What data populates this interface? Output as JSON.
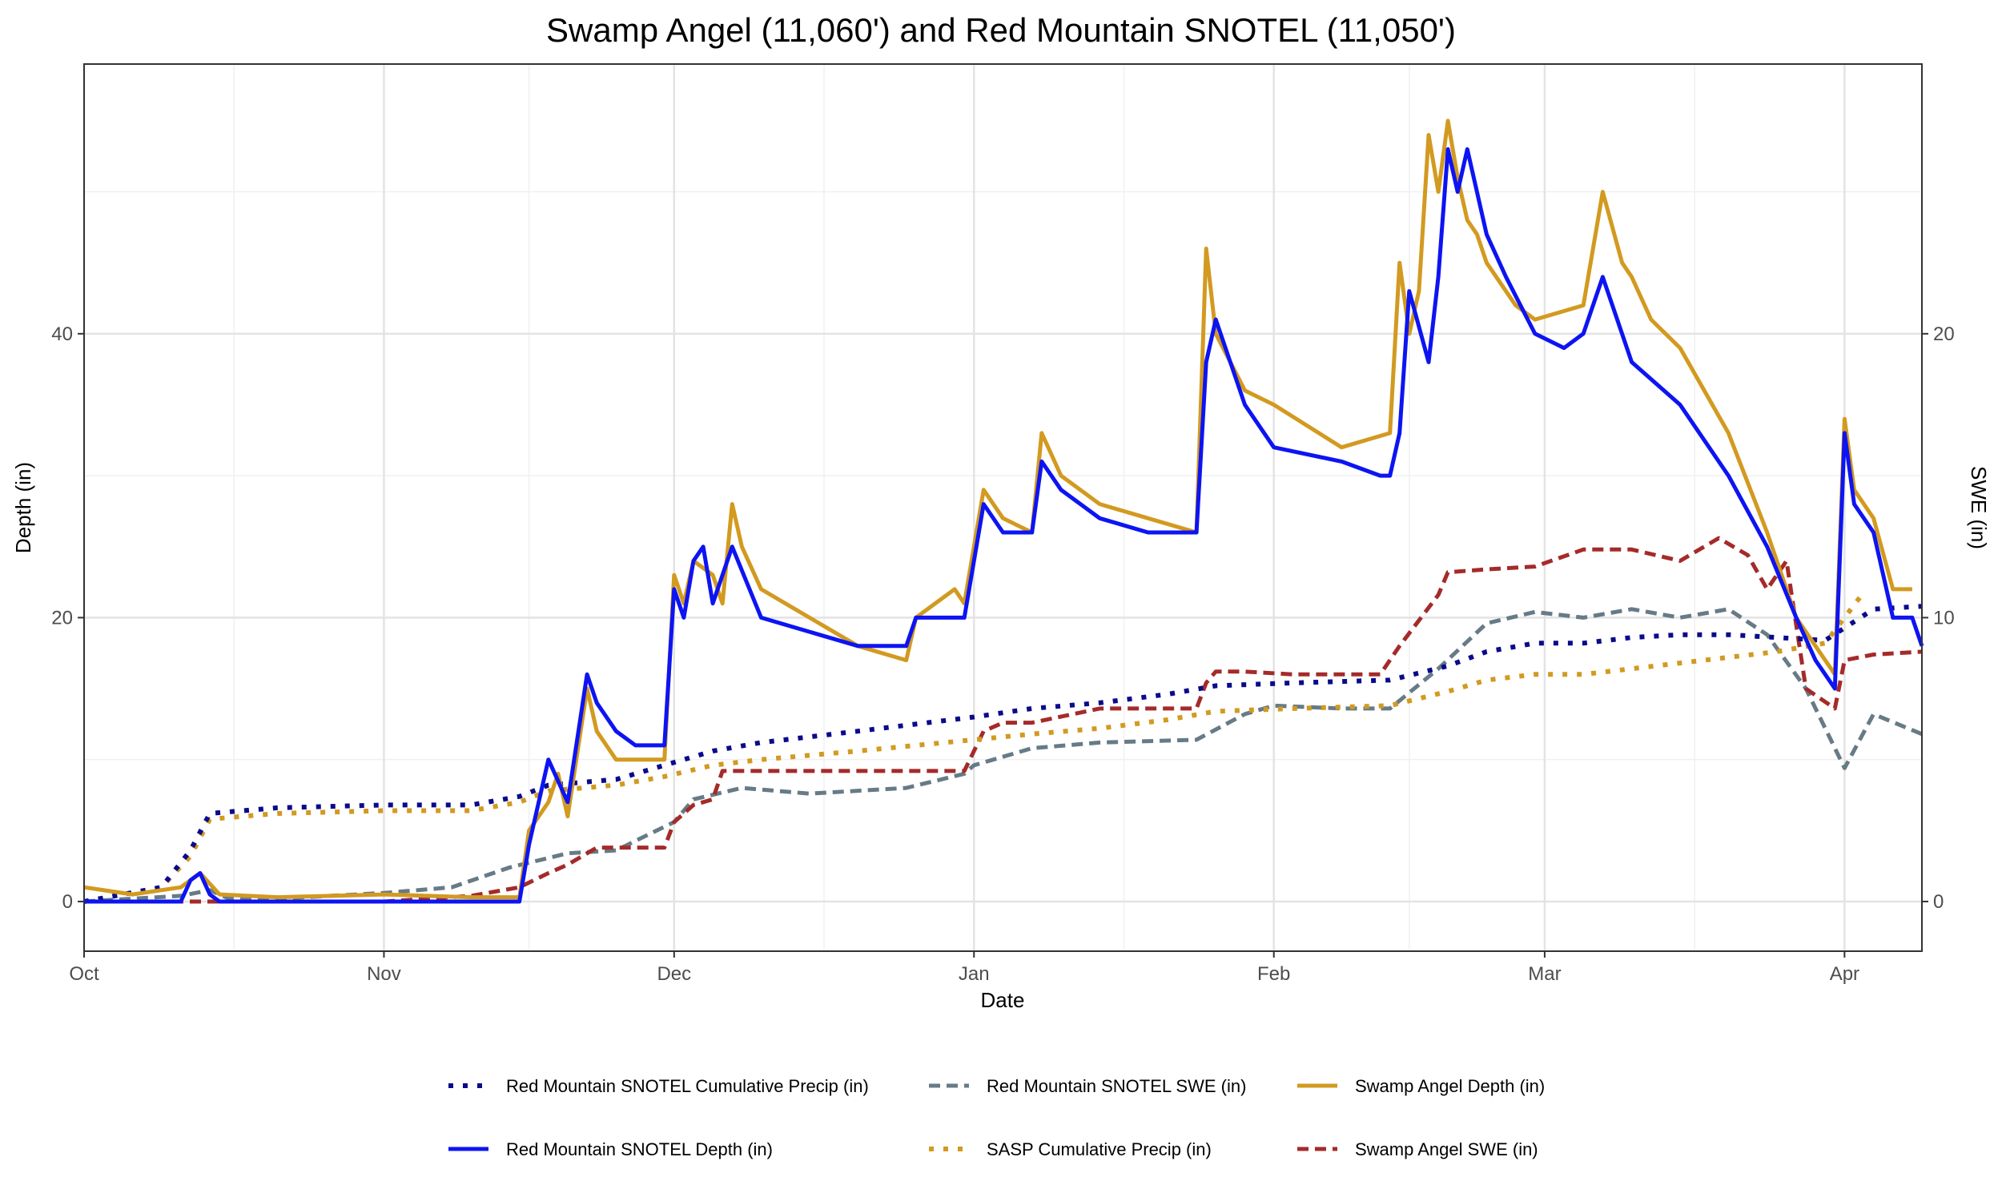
{
  "chart_data": {
    "type": "line",
    "title": "Swamp Angel (11,060') and Red Mountain SNOTEL (11,050')",
    "xlabel": "Date",
    "ylabel": "Depth (in)",
    "y2label": "SWE (in)",
    "x_range_days": [
      0,
      190
    ],
    "x_ticks": [
      {
        "label": "Oct",
        "day": 0
      },
      {
        "label": "Nov",
        "day": 31
      },
      {
        "label": "Dec",
        "day": 61
      },
      {
        "label": "Jan",
        "day": 92
      },
      {
        "label": "Feb",
        "day": 123
      },
      {
        "label": "Mar",
        "day": 151
      },
      {
        "label": "Apr",
        "day": 182
      }
    ],
    "ylim": [
      -3.5,
      59
    ],
    "y_ticks": [
      0,
      20,
      40
    ],
    "y2lim": [
      -1.75,
      29.5
    ],
    "y2_ticks": [
      0,
      10,
      20
    ],
    "grid": true,
    "legend_position": "bottom",
    "series": [
      {
        "name": "Red Mountain SNOTEL Cumulative Precip (in)",
        "color": "#0a0a8c",
        "dash": "dot",
        "axis": "y2",
        "x": [
          0,
          8,
          11,
          13,
          20,
          31,
          40,
          45,
          48,
          55,
          60,
          65,
          70,
          80,
          92,
          98,
          105,
          112,
          117,
          125,
          135,
          141,
          145,
          150,
          155,
          160,
          165,
          170,
          175,
          180,
          185,
          190
        ],
        "y": [
          0,
          0.5,
          1.8,
          3.1,
          3.3,
          3.4,
          3.4,
          3.7,
          4.1,
          4.3,
          4.8,
          5.3,
          5.6,
          6.0,
          6.5,
          6.8,
          7.0,
          7.3,
          7.6,
          7.7,
          7.8,
          8.3,
          8.8,
          9.1,
          9.1,
          9.3,
          9.4,
          9.4,
          9.3,
          9.2,
          10.3,
          10.4
        ]
      },
      {
        "name": "Red Mountain SNOTEL SWE (in)",
        "color": "#667b86",
        "dash": "dash",
        "axis": "y2",
        "x": [
          0,
          5,
          10,
          13,
          15,
          20,
          31,
          38,
          44,
          50,
          55,
          61,
          63,
          68,
          75,
          85,
          91,
          92,
          98,
          105,
          115,
          120,
          123,
          130,
          135,
          140,
          145,
          150,
          155,
          160,
          165,
          170,
          174,
          178,
          182,
          185,
          190
        ],
        "y": [
          0,
          0.1,
          0.2,
          0.4,
          0.1,
          0.1,
          0.3,
          0.5,
          1.2,
          1.7,
          1.8,
          2.8,
          3.6,
          4.0,
          3.8,
          4.0,
          4.5,
          4.8,
          5.4,
          5.6,
          5.7,
          6.6,
          6.9,
          6.8,
          6.8,
          8.2,
          9.8,
          10.2,
          10.0,
          10.3,
          10.0,
          10.3,
          9.4,
          7.5,
          4.7,
          6.6,
          5.9
        ]
      },
      {
        "name": "Swamp Angel Depth (in)",
        "color": "#d29a20",
        "dash": "solid",
        "axis": "y1",
        "x": [
          0,
          5,
          10,
          12,
          14,
          20,
          31,
          40,
          45,
          46,
          48,
          49,
          50,
          52,
          53,
          55,
          57,
          60,
          61,
          62,
          63,
          65,
          66,
          67,
          68,
          70,
          75,
          80,
          85,
          86,
          90,
          91,
          93,
          95,
          98,
          99,
          101,
          105,
          110,
          115,
          116,
          117,
          120,
          123,
          130,
          135,
          136,
          137,
          138,
          139,
          140,
          141,
          142,
          143,
          144,
          145,
          148,
          150,
          155,
          157,
          159,
          160,
          162,
          165,
          170,
          174,
          177,
          179,
          181,
          182,
          183,
          185,
          187,
          189
        ],
        "y": [
          1,
          0.5,
          1,
          2,
          0.5,
          0.3,
          0.5,
          0.3,
          0.3,
          5,
          7,
          9,
          6,
          15,
          12,
          10,
          10,
          10,
          23,
          21,
          24,
          23,
          21,
          28,
          25,
          22,
          20,
          18,
          17,
          20,
          22,
          21,
          29,
          27,
          26,
          33,
          30,
          28,
          27,
          26,
          46,
          40,
          36,
          35,
          32,
          33,
          45,
          40,
          43,
          54,
          50,
          55,
          51,
          48,
          47,
          45,
          42,
          41,
          42,
          50,
          45,
          44,
          41,
          39,
          33,
          26,
          20,
          18,
          16,
          34,
          29,
          27,
          22,
          22
        ]
      },
      {
        "name": "Red Mountain SNOTEL Depth (in)",
        "color": "#0d14f2",
        "dash": "solid",
        "axis": "y1",
        "x": [
          0,
          10,
          11,
          12,
          13,
          14,
          20,
          31,
          40,
          45,
          46,
          48,
          50,
          52,
          53,
          55,
          57,
          59,
          60,
          61,
          62,
          63,
          64,
          65,
          66,
          67,
          70,
          75,
          80,
          85,
          86,
          90,
          91,
          93,
          95,
          98,
          99,
          101,
          105,
          110,
          115,
          116,
          117,
          120,
          123,
          130,
          134,
          135,
          136,
          137,
          139,
          140,
          141,
          142,
          143,
          145,
          147,
          150,
          153,
          155,
          157,
          160,
          165,
          170,
          174,
          177,
          179,
          181,
          182,
          183,
          185,
          187,
          189,
          190
        ],
        "y": [
          0,
          0,
          1.5,
          2,
          0.5,
          0,
          0,
          0,
          0,
          0,
          4,
          10,
          7,
          16,
          14,
          12,
          11,
          11,
          11,
          22,
          20,
          24,
          25,
          21,
          23,
          25,
          20,
          19,
          18,
          18,
          20,
          20,
          20,
          28,
          26,
          26,
          31,
          29,
          27,
          26,
          26,
          38,
          41,
          35,
          32,
          31,
          30,
          30,
          33,
          43,
          38,
          44,
          53,
          50,
          53,
          47,
          44,
          40,
          39,
          40,
          44,
          38,
          35,
          30,
          25,
          20,
          17,
          15,
          33,
          28,
          26,
          20,
          20,
          18
        ]
      },
      {
        "name": "SASP Cumulative Precip (in)",
        "color": "#d29a20",
        "dash": "dot",
        "axis": "y2",
        "x": [
          0,
          8,
          11,
          13,
          20,
          31,
          40,
          45,
          48,
          55,
          60,
          65,
          70,
          80,
          92,
          98,
          105,
          112,
          117,
          125,
          135,
          141,
          145,
          150,
          155,
          160,
          165,
          170,
          175,
          180,
          184
        ],
        "y": [
          0,
          0.5,
          1.6,
          2.9,
          3.1,
          3.2,
          3.2,
          3.5,
          3.9,
          4.1,
          4.4,
          4.8,
          5.0,
          5.3,
          5.7,
          5.9,
          6.1,
          6.4,
          6.7,
          6.8,
          6.9,
          7.4,
          7.8,
          8.0,
          8.0,
          8.2,
          8.4,
          8.6,
          8.8,
          9.1,
          10.9
        ]
      },
      {
        "name": "Swamp Angel SWE (in)",
        "color": "#a52a2a",
        "dash": "dash",
        "axis": "y2",
        "x": [
          0,
          31,
          40,
          45,
          48,
          50,
          53,
          55,
          60,
          61,
          63,
          65,
          66,
          68,
          75,
          85,
          91,
          93,
          95,
          98,
          105,
          115,
          116,
          117,
          120,
          125,
          130,
          134,
          136,
          140,
          141,
          145,
          150,
          155,
          160,
          165,
          169,
          172,
          174,
          176,
          178,
          181,
          182,
          185,
          190
        ],
        "y": [
          0,
          0,
          0.2,
          0.5,
          1.0,
          1.3,
          1.9,
          1.9,
          1.9,
          2.8,
          3.4,
          3.6,
          4.6,
          4.6,
          4.6,
          4.6,
          4.6,
          6.0,
          6.3,
          6.3,
          6.8,
          6.8,
          7.7,
          8.1,
          8.1,
          8.0,
          8.0,
          8.0,
          9.0,
          10.8,
          11.6,
          11.7,
          11.8,
          12.4,
          12.4,
          12.0,
          12.8,
          12.2,
          11.0,
          12.0,
          7.5,
          6.8,
          8.5,
          8.7,
          8.8
        ]
      }
    ]
  }
}
